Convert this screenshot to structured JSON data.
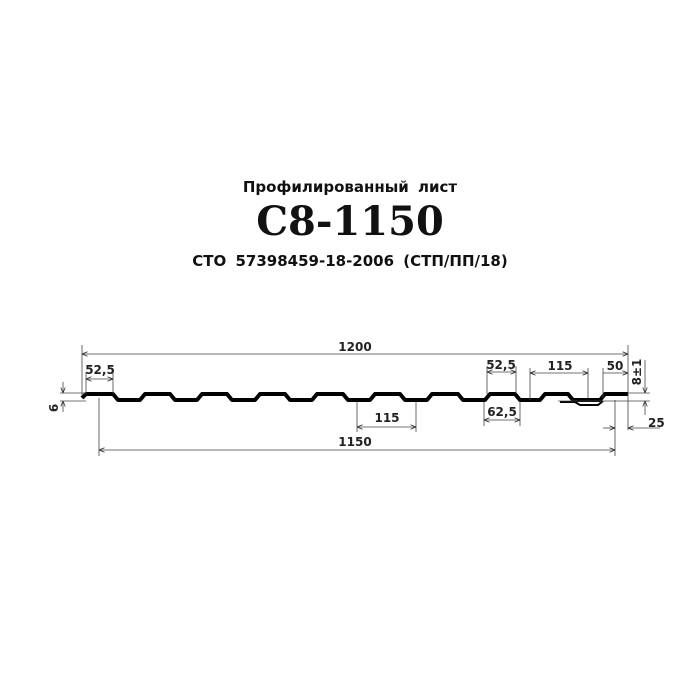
{
  "header": {
    "subtitle": "Профилированный лист",
    "title": "С8-1150",
    "standard": "СТО 57398459-18-2006 (СТП/ПП/18)"
  },
  "dimensions": {
    "total_width": "1200",
    "working_width": "1150",
    "rib_top_left": "52,5",
    "rib_top_right": "52,5",
    "rib_base": "62,5",
    "pitch_middle": "115",
    "pitch_right": "115",
    "end_flat": "50",
    "height": "8±1",
    "edge_offset": "25",
    "edge_bend": "6"
  }
}
